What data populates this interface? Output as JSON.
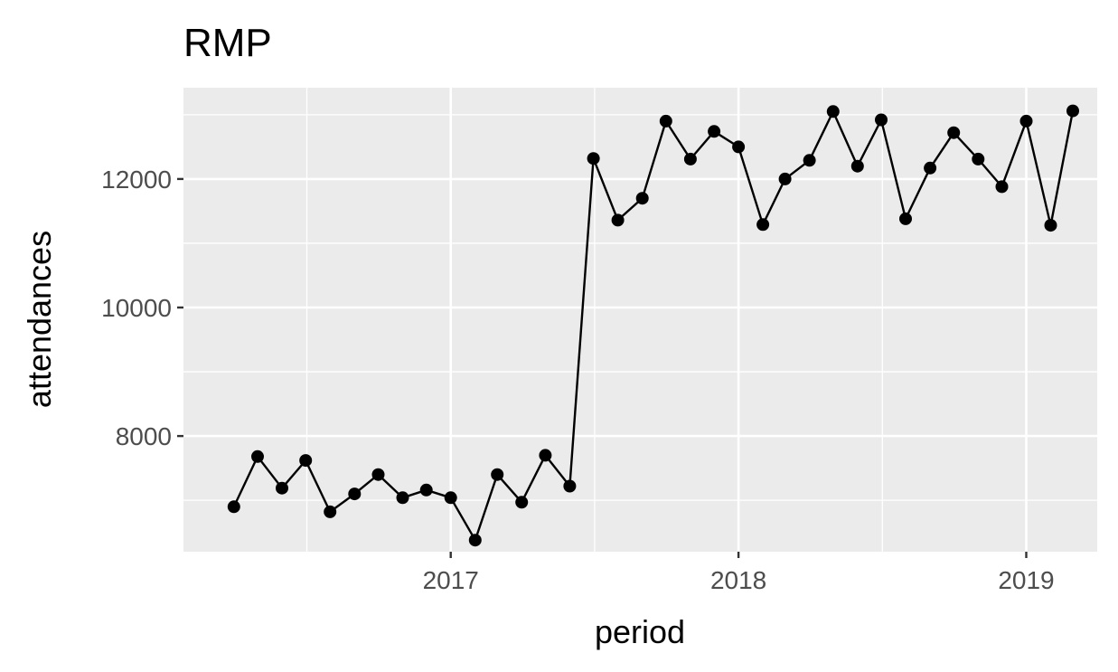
{
  "chart_data": {
    "type": "line",
    "title": "RMP",
    "xlabel": "period",
    "ylabel": "attendances",
    "x_ticks": [
      {
        "value": "2017-01-01",
        "label": "2017"
      },
      {
        "value": "2018-01-01",
        "label": "2018"
      },
      {
        "value": "2019-01-01",
        "label": "2019"
      }
    ],
    "y_ticks": [
      {
        "value": 8000,
        "label": "8000"
      },
      {
        "value": 10000,
        "label": "10000"
      },
      {
        "value": 12000,
        "label": "12000"
      }
    ],
    "xlim": [
      "2016-01-28",
      "2019-04-01"
    ],
    "ylim": [
      6200,
      13420
    ],
    "grid": true,
    "series": [
      {
        "color": "#000000",
        "points": [
          {
            "x": "2016-04-01",
            "y": 6900
          },
          {
            "x": "2016-05-01",
            "y": 7680
          },
          {
            "x": "2016-06-01",
            "y": 7190
          },
          {
            "x": "2016-07-01",
            "y": 7620
          },
          {
            "x": "2016-08-01",
            "y": 6820
          },
          {
            "x": "2016-09-01",
            "y": 7100
          },
          {
            "x": "2016-10-01",
            "y": 7400
          },
          {
            "x": "2016-11-01",
            "y": 7040
          },
          {
            "x": "2016-12-01",
            "y": 7160
          },
          {
            "x": "2017-01-01",
            "y": 7040
          },
          {
            "x": "2017-02-01",
            "y": 6380
          },
          {
            "x": "2017-03-01",
            "y": 7400
          },
          {
            "x": "2017-04-01",
            "y": 6970
          },
          {
            "x": "2017-05-01",
            "y": 7700
          },
          {
            "x": "2017-06-01",
            "y": 7220
          },
          {
            "x": "2017-07-01",
            "y": 12320
          },
          {
            "x": "2017-08-01",
            "y": 11360
          },
          {
            "x": "2017-09-01",
            "y": 11700
          },
          {
            "x": "2017-10-01",
            "y": 12900
          },
          {
            "x": "2017-11-01",
            "y": 12310
          },
          {
            "x": "2017-12-01",
            "y": 12740
          },
          {
            "x": "2018-01-01",
            "y": 12500
          },
          {
            "x": "2018-02-01",
            "y": 11290
          },
          {
            "x": "2018-03-01",
            "y": 12000
          },
          {
            "x": "2018-04-01",
            "y": 12290
          },
          {
            "x": "2018-05-01",
            "y": 13050
          },
          {
            "x": "2018-06-01",
            "y": 12200
          },
          {
            "x": "2018-07-01",
            "y": 12920
          },
          {
            "x": "2018-08-01",
            "y": 11380
          },
          {
            "x": "2018-09-01",
            "y": 12170
          },
          {
            "x": "2018-10-01",
            "y": 12720
          },
          {
            "x": "2018-11-01",
            "y": 12310
          },
          {
            "x": "2018-12-01",
            "y": 11880
          },
          {
            "x": "2019-01-01",
            "y": 12900
          },
          {
            "x": "2019-02-01",
            "y": 11280
          },
          {
            "x": "2019-03-01",
            "y": 13060
          }
        ]
      }
    ]
  }
}
